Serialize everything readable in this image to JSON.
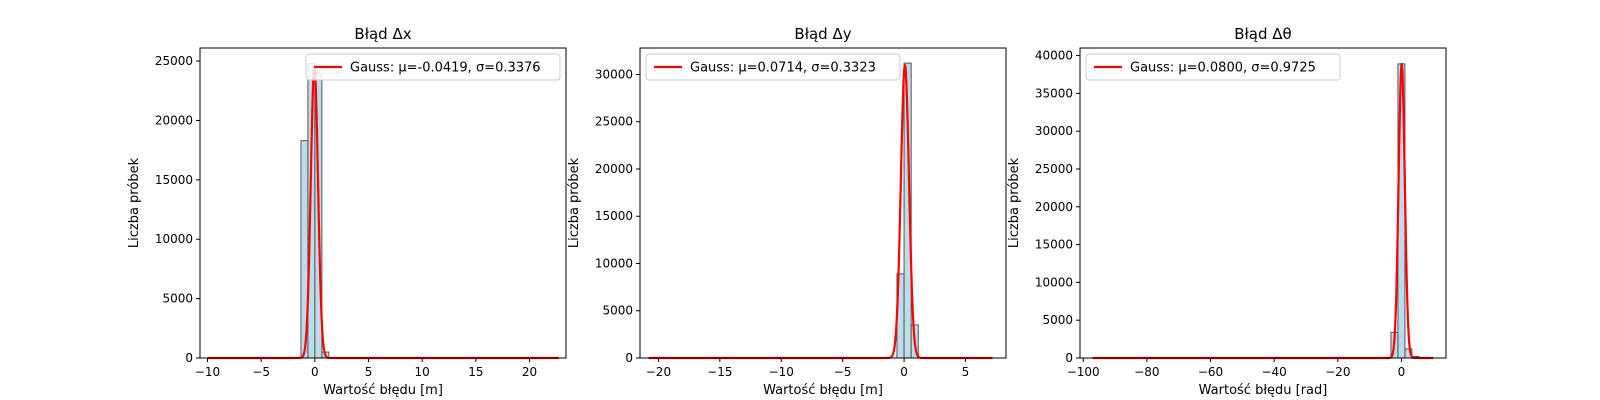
{
  "chart_data": [
    {
      "type": "bar",
      "title": "Błąd Δx",
      "xlabel": "Wartość błędu [m]",
      "ylabel": "Liczba próbek",
      "xlim": [
        -10.7,
        23.4
      ],
      "ylim": [
        0,
        26100
      ],
      "xticks": [
        -10,
        -5,
        0,
        5,
        10,
        15,
        20
      ],
      "xtick_labels": [
        "−10",
        "−5",
        "0",
        "5",
        "10",
        "15",
        "20"
      ],
      "yticks": [
        0,
        5000,
        10000,
        15000,
        20000,
        25000
      ],
      "bar_width": 0.65,
      "bars": [
        {
          "x": -0.97,
          "value": 18300
        },
        {
          "x": -0.32,
          "value": 24800
        },
        {
          "x": 0.33,
          "value": 23800
        },
        {
          "x": 0.98,
          "value": 500
        }
      ],
      "fit": {
        "mu": -0.0419,
        "sigma": 0.3376,
        "amplitude": 24600,
        "range": [
          -10,
          22.7
        ]
      },
      "legend": {
        "label": "Gauss: μ=-0.0419, σ=0.3376",
        "position": "top-right"
      },
      "grid": false
    },
    {
      "type": "bar",
      "title": "Błąd Δy",
      "xlabel": "Wartość błędu [m]",
      "ylabel": "Liczba próbek",
      "xlim": [
        -21.5,
        8.3
      ],
      "ylim": [
        0,
        32800
      ],
      "xticks": [
        -20,
        -15,
        -10,
        -5,
        0,
        5
      ],
      "xtick_labels": [
        "−20",
        "−15",
        "−10",
        "−5",
        "0",
        "5"
      ],
      "yticks": [
        0,
        5000,
        10000,
        15000,
        20000,
        25000,
        30000
      ],
      "bar_width": 0.58,
      "bars": [
        {
          "x": -0.29,
          "value": 8900
        },
        {
          "x": 0.29,
          "value": 31200
        },
        {
          "x": 0.87,
          "value": 3500
        }
      ],
      "fit": {
        "mu": 0.0714,
        "sigma": 0.3323,
        "amplitude": 31000,
        "range": [
          -20.8,
          7.2
        ]
      },
      "legend": {
        "label": "Gauss: μ=0.0714, σ=0.3323",
        "position": "top-left"
      },
      "grid": false
    },
    {
      "type": "bar",
      "title": "Błąd Δθ",
      "xlabel": "Wartość błędu [rad]",
      "ylabel": "Liczba próbek",
      "xlim": [
        -101,
        14
      ],
      "ylim": [
        0,
        41000
      ],
      "xticks": [
        -100,
        -80,
        -60,
        -40,
        -20,
        0
      ],
      "xtick_labels": [
        "−100",
        "−80",
        "−60",
        "−40",
        "−20",
        "0"
      ],
      "yticks": [
        0,
        5000,
        10000,
        15000,
        20000,
        25000,
        30000,
        35000,
        40000
      ],
      "bar_width": 2.2,
      "bars": [
        {
          "x": -2.2,
          "value": 3400
        },
        {
          "x": 0.0,
          "value": 38900
        },
        {
          "x": 2.2,
          "value": 1200
        },
        {
          "x": 4.4,
          "value": 200
        }
      ],
      "fit": {
        "mu": 0.08,
        "sigma": 0.9725,
        "amplitude": 38900,
        "range": [
          -97,
          10
        ]
      },
      "legend": {
        "label": "Gauss: μ=0.0800, σ=0.9725",
        "position": "top-left"
      },
      "grid": false
    }
  ],
  "colors": {
    "bar_fill": "#add8e6",
    "bar_edge": "#555555",
    "fit_line": "#ff0000",
    "axes": "#000000"
  }
}
